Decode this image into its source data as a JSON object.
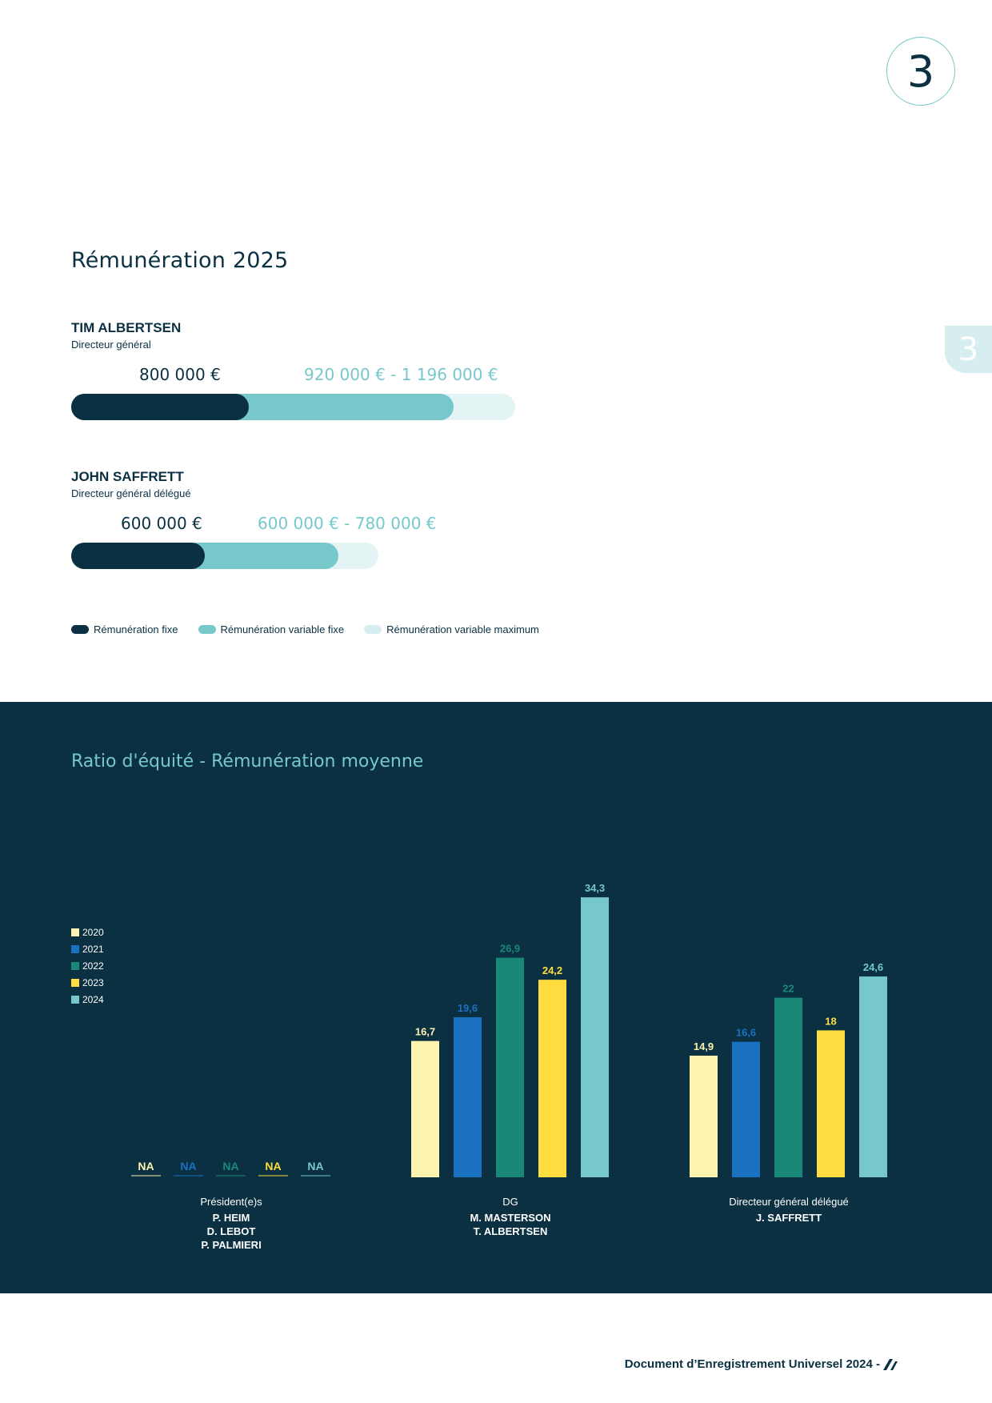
{
  "chapter_number": "3",
  "side_tab": "3",
  "remuneration": {
    "title": "Rémunération 2025",
    "people": [
      {
        "name": "TIM ALBERTSEN",
        "role": "Directeur général",
        "fixed_label": "800 000 €",
        "variable_label": "920 000 € - 1 196 000 €",
        "fixed": 800000,
        "variable_target": 920000,
        "variable_max": 1196000
      },
      {
        "name": "JOHN SAFFRETT",
        "role": "Directeur général délégué",
        "fixed_label": "600 000 €",
        "variable_label": "600 000 € - 780 000 €",
        "fixed": 600000,
        "variable_target": 600000,
        "variable_max": 780000
      }
    ],
    "legend": [
      {
        "label": "Rémunération fixe",
        "color": "#0a3042"
      },
      {
        "label": "Rémunération variable fixe",
        "color": "#76c8cb"
      },
      {
        "label": "Rémunération variable maximum",
        "color": "#d7eef0"
      }
    ]
  },
  "equity": {
    "title": "Ratio d'équité - Rémunération moyenne",
    "chart_data": {
      "type": "bar",
      "series": [
        {
          "name": "2020",
          "color": "#fff3b0",
          "values": [
            null,
            16.7,
            14.9
          ],
          "labels": [
            "NA",
            "16,7",
            "14,9"
          ]
        },
        {
          "name": "2021",
          "color": "#1b71c1",
          "values": [
            null,
            19.6,
            16.6
          ],
          "labels": [
            "NA",
            "19,6",
            "16,6"
          ]
        },
        {
          "name": "2022",
          "color": "#1a8878",
          "values": [
            null,
            26.9,
            22
          ],
          "labels": [
            "NA",
            "26,9",
            "22"
          ]
        },
        {
          "name": "2023",
          "color": "#ffdc3f",
          "values": [
            null,
            24.2,
            18
          ],
          "labels": [
            "NA",
            "24,2",
            "18"
          ]
        },
        {
          "name": "2024",
          "color": "#76c8cb",
          "values": [
            null,
            34.3,
            24.6
          ],
          "labels": [
            "NA",
            "34,3",
            "24,6"
          ]
        }
      ],
      "groups": [
        {
          "title": "Président(e)s",
          "names": [
            "P. HEIM",
            "D. LEBOT",
            "P. PALMIERI"
          ]
        },
        {
          "title": "DG",
          "names": [
            "M. MASTERSON",
            "T. ALBERTSEN"
          ]
        },
        {
          "title": "Directeur général délégué",
          "names": [
            "J. SAFFRETT"
          ]
        }
      ]
    }
  },
  "footer": {
    "text": "Document d’Enregistrement Universel 2024 -"
  }
}
